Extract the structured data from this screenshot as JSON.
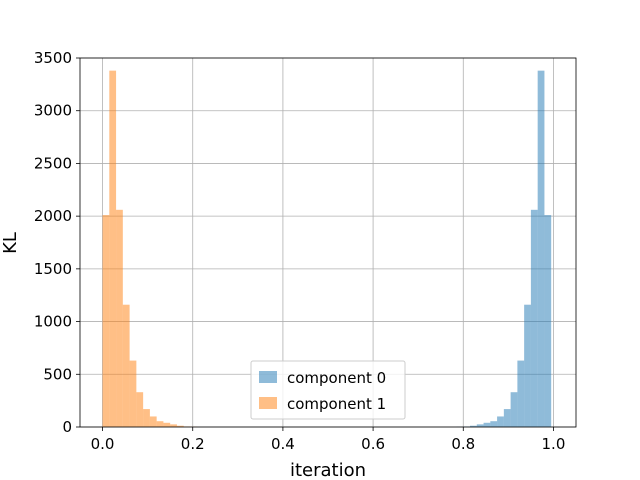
{
  "chart_data": {
    "type": "histogram",
    "xlabel": "iteration",
    "ylabel": "KL",
    "xlim": [
      -0.05,
      1.05
    ],
    "ylim": [
      0,
      3500
    ],
    "xticks": [
      0.0,
      0.2,
      0.4,
      0.6,
      0.8,
      1.0
    ],
    "xtick_labels": [
      "0.0",
      "0.2",
      "0.4",
      "0.6",
      "0.8",
      "1.0"
    ],
    "yticks": [
      0,
      500,
      1000,
      1500,
      2000,
      2500,
      3000,
      3500
    ],
    "ytick_labels": [
      "0",
      "500",
      "1000",
      "1500",
      "2000",
      "2500",
      "3000",
      "3500"
    ],
    "grid": true,
    "legend_position": "lower center",
    "series": [
      {
        "name": "component 0",
        "color": "#1f77b4",
        "alpha": 0.5,
        "bin_edges": [
          0.785,
          0.8,
          0.815,
          0.83,
          0.845,
          0.86,
          0.875,
          0.89,
          0.905,
          0.92,
          0.935,
          0.95,
          0.965,
          0.98,
          0.995
        ],
        "counts": [
          3,
          5,
          12,
          25,
          40,
          55,
          100,
          170,
          330,
          630,
          1160,
          2060,
          3380,
          2010
        ]
      },
      {
        "name": "component 1",
        "color": "#ff7f0e",
        "alpha": 0.5,
        "bin_edges": [
          0.0,
          0.015,
          0.03,
          0.045,
          0.06,
          0.075,
          0.09,
          0.105,
          0.12,
          0.135,
          0.15,
          0.165,
          0.18,
          0.195,
          0.21
        ],
        "counts": [
          2010,
          3380,
          2060,
          1160,
          630,
          330,
          170,
          100,
          55,
          40,
          25,
          12,
          5,
          3
        ]
      }
    ]
  }
}
